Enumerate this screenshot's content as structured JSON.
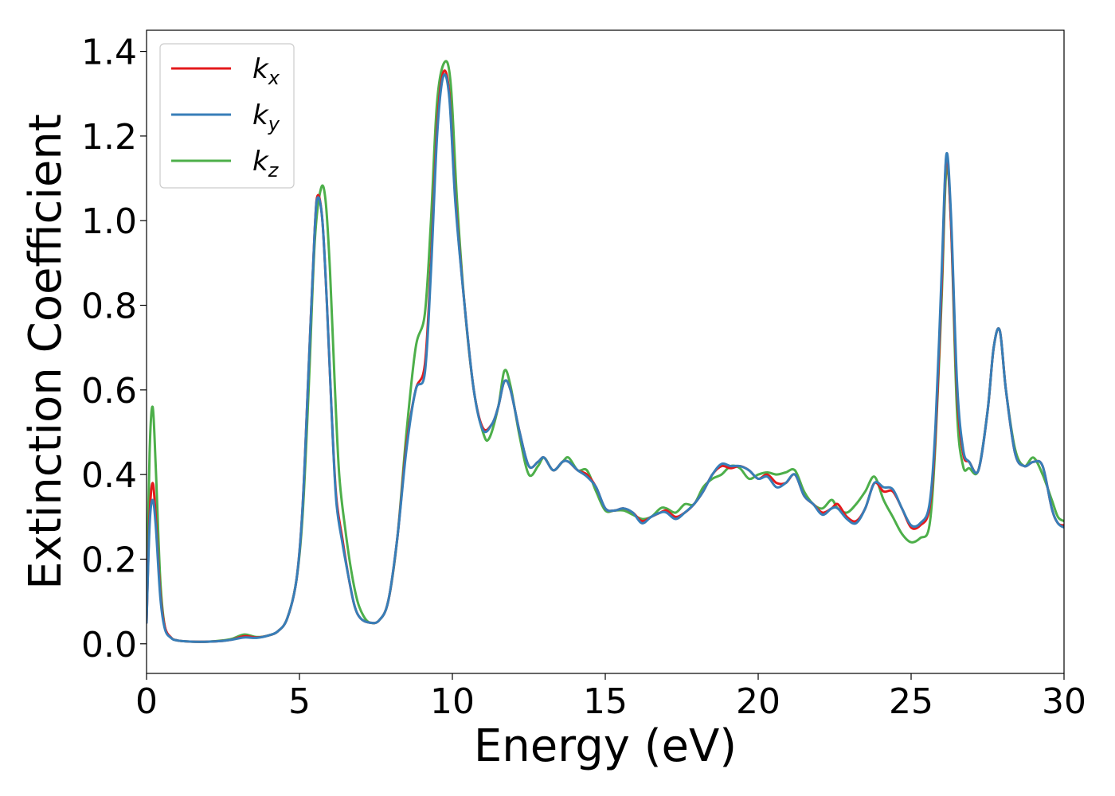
{
  "chart_data": {
    "type": "line",
    "title": "",
    "xlabel": "Energy (eV)",
    "ylabel": "Extinction Coefficient",
    "xlim": [
      0,
      30
    ],
    "ylim": [
      -0.07,
      1.45
    ],
    "xticks": [
      0,
      5,
      10,
      15,
      20,
      25,
      30
    ],
    "xtick_labels": [
      "0",
      "5",
      "10",
      "15",
      "20",
      "25",
      "30"
    ],
    "yticks": [
      0.0,
      0.2,
      0.4,
      0.6,
      0.8,
      1.0,
      1.2,
      1.4
    ],
    "ytick_labels": [
      "0.0",
      "0.2",
      "0.4",
      "0.6",
      "0.8",
      "1.0",
      "1.2",
      "1.4"
    ],
    "grid": false,
    "legend_position": "top-left",
    "series": [
      {
        "name": "k",
        "subscript": "x",
        "color": "#e41a1c",
        "x": [
          0,
          0.1,
          0.2,
          0.3,
          0.45,
          0.6,
          0.8,
          1.0,
          1.5,
          2.0,
          2.5,
          2.8,
          3.2,
          3.6,
          4.0,
          4.3,
          4.6,
          4.9,
          5.1,
          5.3,
          5.5,
          5.6,
          5.75,
          5.9,
          6.05,
          6.2,
          6.4,
          6.6,
          6.8,
          7.0,
          7.3,
          7.6,
          7.9,
          8.2,
          8.5,
          8.8,
          9.1,
          9.3,
          9.5,
          9.7,
          9.9,
          10.1,
          10.4,
          10.7,
          11.0,
          11.3,
          11.5,
          11.7,
          11.9,
          12.2,
          12.5,
          12.8,
          13.0,
          13.3,
          13.6,
          13.8,
          14.1,
          14.4,
          14.7,
          15.0,
          15.3,
          15.6,
          15.9,
          16.2,
          16.5,
          16.8,
          17.0,
          17.3,
          17.6,
          17.9,
          18.2,
          18.5,
          18.8,
          19.1,
          19.4,
          19.7,
          20.0,
          20.3,
          20.6,
          20.9,
          21.2,
          21.5,
          21.8,
          22.1,
          22.4,
          22.6,
          22.9,
          23.2,
          23.5,
          23.8,
          24.1,
          24.4,
          24.7,
          25.0,
          25.3,
          25.6,
          25.8,
          26.0,
          26.15,
          26.3,
          26.5,
          26.7,
          26.9,
          27.2,
          27.5,
          27.7,
          27.9,
          28.1,
          28.4,
          28.7,
          29.0,
          29.3,
          29.6,
          29.8,
          30.0
        ],
        "values": [
          0.05,
          0.3,
          0.38,
          0.3,
          0.12,
          0.04,
          0.015,
          0.008,
          0.005,
          0.005,
          0.007,
          0.01,
          0.018,
          0.015,
          0.02,
          0.03,
          0.06,
          0.15,
          0.32,
          0.65,
          0.98,
          1.06,
          1.0,
          0.8,
          0.55,
          0.35,
          0.25,
          0.16,
          0.09,
          0.06,
          0.05,
          0.055,
          0.1,
          0.25,
          0.47,
          0.6,
          0.66,
          0.9,
          1.22,
          1.35,
          1.3,
          1.05,
          0.8,
          0.6,
          0.51,
          0.52,
          0.56,
          0.62,
          0.6,
          0.5,
          0.42,
          0.43,
          0.44,
          0.41,
          0.43,
          0.43,
          0.41,
          0.4,
          0.37,
          0.32,
          0.315,
          0.32,
          0.31,
          0.29,
          0.3,
          0.31,
          0.315,
          0.3,
          0.31,
          0.33,
          0.36,
          0.4,
          0.42,
          0.415,
          0.42,
          0.41,
          0.39,
          0.4,
          0.38,
          0.38,
          0.4,
          0.35,
          0.33,
          0.31,
          0.32,
          0.33,
          0.3,
          0.29,
          0.32,
          0.38,
          0.36,
          0.36,
          0.32,
          0.275,
          0.28,
          0.32,
          0.5,
          0.85,
          1.15,
          1.0,
          0.6,
          0.45,
          0.43,
          0.41,
          0.55,
          0.7,
          0.74,
          0.6,
          0.45,
          0.42,
          0.43,
          0.42,
          0.32,
          0.285,
          0.28
        ]
      },
      {
        "name": "k",
        "subscript": "y",
        "color": "#377eb8",
        "x": [
          0,
          0.1,
          0.2,
          0.3,
          0.45,
          0.6,
          0.8,
          1.0,
          1.5,
          2.0,
          2.5,
          2.8,
          3.2,
          3.6,
          4.0,
          4.3,
          4.6,
          4.9,
          5.1,
          5.3,
          5.5,
          5.6,
          5.75,
          5.9,
          6.05,
          6.2,
          6.4,
          6.6,
          6.8,
          7.0,
          7.3,
          7.6,
          7.9,
          8.2,
          8.5,
          8.8,
          9.1,
          9.3,
          9.5,
          9.7,
          9.9,
          10.1,
          10.4,
          10.7,
          11.0,
          11.3,
          11.5,
          11.7,
          11.9,
          12.2,
          12.5,
          12.8,
          13.0,
          13.3,
          13.6,
          13.8,
          14.1,
          14.4,
          14.7,
          15.0,
          15.3,
          15.6,
          15.9,
          16.2,
          16.5,
          16.8,
          17.0,
          17.3,
          17.6,
          17.9,
          18.2,
          18.5,
          18.8,
          19.1,
          19.4,
          19.7,
          20.0,
          20.3,
          20.6,
          20.9,
          21.2,
          21.5,
          21.8,
          22.1,
          22.4,
          22.6,
          22.9,
          23.2,
          23.5,
          23.8,
          24.1,
          24.4,
          24.7,
          25.0,
          25.3,
          25.6,
          25.8,
          26.0,
          26.15,
          26.3,
          26.5,
          26.7,
          26.9,
          27.2,
          27.5,
          27.7,
          27.9,
          28.1,
          28.4,
          28.7,
          29.0,
          29.3,
          29.6,
          29.8,
          30.0
        ],
        "values": [
          0.05,
          0.28,
          0.34,
          0.28,
          0.11,
          0.035,
          0.014,
          0.008,
          0.005,
          0.005,
          0.007,
          0.01,
          0.015,
          0.014,
          0.02,
          0.03,
          0.06,
          0.15,
          0.32,
          0.65,
          0.98,
          1.055,
          1.0,
          0.8,
          0.55,
          0.34,
          0.24,
          0.16,
          0.09,
          0.06,
          0.05,
          0.055,
          0.1,
          0.25,
          0.46,
          0.6,
          0.64,
          0.88,
          1.2,
          1.34,
          1.29,
          1.04,
          0.8,
          0.6,
          0.505,
          0.52,
          0.56,
          0.62,
          0.6,
          0.5,
          0.42,
          0.43,
          0.44,
          0.41,
          0.43,
          0.43,
          0.41,
          0.395,
          0.37,
          0.32,
          0.315,
          0.32,
          0.31,
          0.285,
          0.3,
          0.31,
          0.31,
          0.295,
          0.31,
          0.33,
          0.36,
          0.4,
          0.425,
          0.42,
          0.42,
          0.41,
          0.39,
          0.395,
          0.37,
          0.38,
          0.4,
          0.35,
          0.33,
          0.305,
          0.32,
          0.32,
          0.295,
          0.285,
          0.32,
          0.38,
          0.37,
          0.365,
          0.32,
          0.28,
          0.285,
          0.33,
          0.52,
          0.88,
          1.155,
          1.02,
          0.62,
          0.46,
          0.43,
          0.41,
          0.55,
          0.7,
          0.74,
          0.6,
          0.45,
          0.42,
          0.43,
          0.42,
          0.32,
          0.285,
          0.275
        ]
      },
      {
        "name": "k",
        "subscript": "z",
        "color": "#4daf4a",
        "x": [
          0,
          0.1,
          0.2,
          0.3,
          0.45,
          0.6,
          0.8,
          1.0,
          1.5,
          2.0,
          2.5,
          2.8,
          3.2,
          3.6,
          4.0,
          4.3,
          4.6,
          4.9,
          5.1,
          5.3,
          5.5,
          5.7,
          5.85,
          6.0,
          6.15,
          6.3,
          6.5,
          6.7,
          6.9,
          7.1,
          7.3,
          7.6,
          7.9,
          8.2,
          8.5,
          8.8,
          9.1,
          9.3,
          9.5,
          9.75,
          9.95,
          10.15,
          10.4,
          10.7,
          11.0,
          11.2,
          11.5,
          11.7,
          11.9,
          12.2,
          12.5,
          12.8,
          13.0,
          13.3,
          13.6,
          13.8,
          14.1,
          14.4,
          14.7,
          15.0,
          15.3,
          15.6,
          15.9,
          16.2,
          16.5,
          16.8,
          17.0,
          17.3,
          17.6,
          17.9,
          18.2,
          18.5,
          18.8,
          19.1,
          19.4,
          19.7,
          20.0,
          20.3,
          20.6,
          20.9,
          21.2,
          21.5,
          21.8,
          22.1,
          22.4,
          22.6,
          22.9,
          23.2,
          23.5,
          23.8,
          24.1,
          24.4,
          24.7,
          25.0,
          25.3,
          25.6,
          25.8,
          26.0,
          26.15,
          26.3,
          26.5,
          26.7,
          26.9,
          27.2,
          27.5,
          27.7,
          27.9,
          28.1,
          28.4,
          28.7,
          29.0,
          29.3,
          29.6,
          29.8,
          30.0
        ],
        "values": [
          0.07,
          0.45,
          0.56,
          0.42,
          0.15,
          0.04,
          0.015,
          0.008,
          0.005,
          0.005,
          0.008,
          0.012,
          0.022,
          0.016,
          0.02,
          0.03,
          0.06,
          0.15,
          0.3,
          0.6,
          0.95,
          1.075,
          1.05,
          0.88,
          0.62,
          0.4,
          0.27,
          0.17,
          0.1,
          0.065,
          0.05,
          0.055,
          0.1,
          0.25,
          0.5,
          0.7,
          0.78,
          1.0,
          1.28,
          1.375,
          1.32,
          1.05,
          0.8,
          0.6,
          0.5,
          0.485,
          0.56,
          0.645,
          0.61,
          0.49,
          0.4,
          0.42,
          0.44,
          0.41,
          0.43,
          0.44,
          0.41,
          0.41,
          0.36,
          0.315,
          0.315,
          0.315,
          0.305,
          0.295,
          0.3,
          0.32,
          0.32,
          0.31,
          0.33,
          0.33,
          0.37,
          0.39,
          0.4,
          0.42,
          0.415,
          0.39,
          0.4,
          0.405,
          0.4,
          0.405,
          0.41,
          0.36,
          0.33,
          0.32,
          0.34,
          0.32,
          0.31,
          0.33,
          0.36,
          0.395,
          0.34,
          0.3,
          0.26,
          0.24,
          0.25,
          0.28,
          0.48,
          0.82,
          1.12,
          1.0,
          0.55,
          0.42,
          0.415,
          0.41,
          0.55,
          0.7,
          0.74,
          0.6,
          0.46,
          0.42,
          0.44,
          0.4,
          0.34,
          0.3,
          0.29
        ]
      }
    ]
  }
}
